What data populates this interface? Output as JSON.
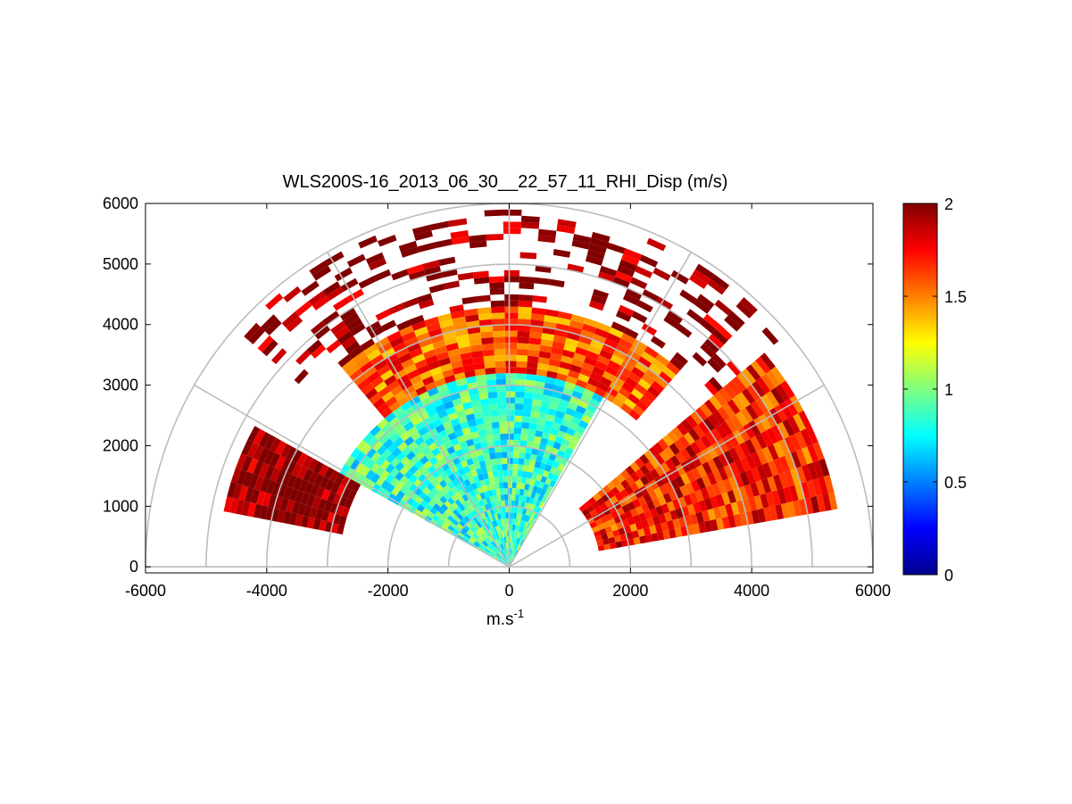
{
  "chart_data": {
    "type": "heatmap",
    "title": "WLS200S-16_2013_06_30__22_57_11_RHI_Disp (m/s)",
    "xlabel": "m.s",
    "xlabel_superscript": "-1",
    "ylabel": "",
    "xlim": [
      -6000,
      6000
    ],
    "ylim": [
      0,
      6000
    ],
    "x_ticks": [
      -6000,
      -4000,
      -2000,
      0,
      2000,
      4000,
      6000
    ],
    "y_ticks": [
      0,
      1000,
      2000,
      3000,
      4000,
      5000,
      6000
    ],
    "polar_grid": {
      "ranges": [
        1000,
        2000,
        3000,
        4000,
        5000,
        6000
      ],
      "angles_deg": [
        0,
        30,
        60,
        90,
        120,
        150,
        180
      ]
    },
    "colorbar": {
      "colormap": "jet",
      "min": 0,
      "max": 2,
      "ticks": [
        0,
        0.5,
        1,
        1.5,
        2
      ]
    },
    "scan": {
      "elevation_range_deg": [
        10,
        168
      ],
      "range_gates_m": [
        0,
        6000
      ],
      "description_regions": [
        {
          "elevation_deg": [
            150,
            168
          ],
          "range_m": [
            2800,
            4800
          ],
          "value_typical": 2.0
        },
        {
          "elevation_deg": [
            60,
            150
          ],
          "range_m": [
            0,
            3200
          ],
          "value_typical": 0.85
        },
        {
          "elevation_deg": [
            50,
            130
          ],
          "range_m": [
            3200,
            4300
          ],
          "value_typical": 1.6
        },
        {
          "elevation_deg": [
            10,
            40
          ],
          "range_m": [
            1500,
            5500
          ],
          "value_typical": 1.7
        },
        {
          "elevation_deg": [
            40,
            140
          ],
          "range_m": [
            4300,
            5900
          ],
          "value_typical": 2.0,
          "sparse": true
        }
      ]
    }
  },
  "colors": {
    "axis": "#000000",
    "polar_grid": "#bdbdbd"
  }
}
